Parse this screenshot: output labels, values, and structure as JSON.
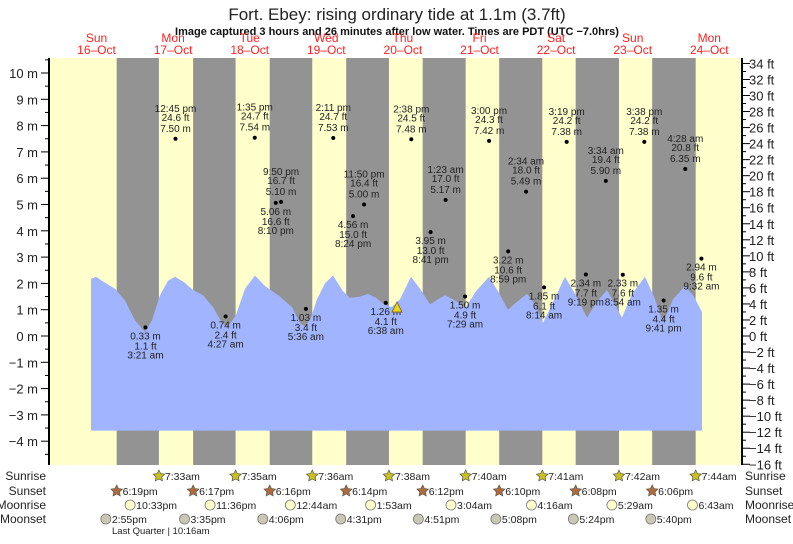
{
  "chart_data": {
    "type": "area",
    "title": "Fort. Ebey: rising  ordinary tide at 1.1m (3.7ft)",
    "subtitle": "Image captured 3 hours and 26 minutes after low water. Times are PDT (UTC −7.0hrs)",
    "days": [
      {
        "dow": "Sun",
        "date": "16–Oct"
      },
      {
        "dow": "Mon",
        "date": "17–Oct"
      },
      {
        "dow": "Tue",
        "date": "18–Oct"
      },
      {
        "dow": "Wed",
        "date": "19–Oct"
      },
      {
        "dow": "Thu",
        "date": "20–Oct"
      },
      {
        "dow": "Fri",
        "date": "21–Oct"
      },
      {
        "dow": "Sat",
        "date": "22–Oct"
      },
      {
        "dow": "Sun",
        "date": "23–Oct"
      },
      {
        "dow": "Mon",
        "date": "24–Oct"
      }
    ],
    "y_left": {
      "unit": "m",
      "range": [
        -4.9,
        10.6
      ],
      "ticks": [
        10,
        9,
        8,
        7,
        6,
        5,
        4,
        3,
        2,
        1,
        0,
        -1,
        -2,
        -3,
        -4
      ],
      "tick_labels": [
        "10 m",
        "9 m",
        "8 m",
        "7 m",
        "6 m",
        "5 m",
        "4 m",
        "3 m",
        "2 m",
        "1 m",
        "0 m",
        "−1 m",
        "−2 m",
        "−3 m",
        "−4 m"
      ]
    },
    "y_right": {
      "unit": "ft",
      "ticks": [
        34,
        32,
        30,
        28,
        26,
        24,
        22,
        20,
        18,
        16,
        14,
        12,
        10,
        8,
        6,
        4,
        2,
        0,
        -2,
        -4,
        -6,
        -8,
        -10,
        -12,
        -14,
        -16
      ],
      "tick_labels": [
        "34 ft",
        "32 ft",
        "30 ft",
        "28 ft",
        "26 ft",
        "24 ft",
        "22 ft",
        "20 ft",
        "18 ft",
        "16 ft",
        "14 ft",
        "12 ft",
        "10 ft",
        "8 ft",
        "6 ft",
        "4 ft",
        "2 ft",
        "0 ft",
        "−2 ft",
        "−4 ft",
        "−6 ft",
        "−8 ft",
        "−10 ft",
        "−12 ft",
        "−14 ft",
        "−16 ft"
      ]
    },
    "current_level_m": 1.1,
    "tide_events": [
      {
        "day": 1,
        "time": "3:21 am",
        "ft": "1.1 ft",
        "m": "0.33 m",
        "h": 3.35,
        "value": 0.33,
        "label": "below"
      },
      {
        "day": 1,
        "time": "12:45 pm",
        "ft": "24.6 ft",
        "m": "7.50 m",
        "h": 12.75,
        "value": 7.5,
        "label": "above"
      },
      {
        "day": 2,
        "time": "4:27 am",
        "ft": "2.4 ft",
        "m": "0.74 m",
        "h": 4.45,
        "value": 0.74,
        "label": "below"
      },
      {
        "day": 2,
        "time": "1:35 pm",
        "ft": "24.7 ft",
        "m": "7.54 m",
        "h": 13.58,
        "value": 7.54,
        "label": "above"
      },
      {
        "day": 2,
        "time": "8:10 pm",
        "ft": "16.6 ft",
        "m": "5.06 m",
        "h": 20.17,
        "value": 5.06,
        "label": "below"
      },
      {
        "day": 2,
        "time": "9:50 pm",
        "ft": "16.7 ft",
        "m": "5.10 m",
        "h": 21.83,
        "value": 5.1,
        "label": "above"
      },
      {
        "day": 3,
        "time": "5:36 am",
        "ft": "3.4 ft",
        "m": "1.03 m",
        "h": 5.6,
        "value": 1.03,
        "label": "below"
      },
      {
        "day": 3,
        "time": "2:11 pm",
        "ft": "24.7 ft",
        "m": "7.53 m",
        "h": 14.18,
        "value": 7.53,
        "label": "above"
      },
      {
        "day": 3,
        "time": "8:24 pm",
        "ft": "15.0 ft",
        "m": "4.56 m",
        "h": 20.4,
        "value": 4.56,
        "label": "below"
      },
      {
        "day": 3,
        "time": "11:50 pm",
        "ft": "16.4 ft",
        "m": "5.00 m",
        "h": 23.83,
        "value": 5.0,
        "label": "above"
      },
      {
        "day": 4,
        "time": "6:38 am",
        "ft": "4.1 ft",
        "m": "1.26 m",
        "h": 6.63,
        "value": 1.26,
        "label": "below"
      },
      {
        "day": 4,
        "time": "2:38 pm",
        "ft": "24.5 ft",
        "m": "7.48 m",
        "h": 14.63,
        "value": 7.48,
        "label": "above"
      },
      {
        "day": 4,
        "time": "8:41 pm",
        "ft": "13.0 ft",
        "m": "3.95 m",
        "h": 20.68,
        "value": 3.95,
        "label": "below"
      },
      {
        "day": 5,
        "time": "1:23 am",
        "ft": "17.0 ft",
        "m": "5.17 m",
        "h": 1.38,
        "value": 5.17,
        "label": "above"
      },
      {
        "day": 5,
        "time": "7:29 am",
        "ft": "4.9 ft",
        "m": "1.50 m",
        "h": 7.48,
        "value": 1.5,
        "label": "below"
      },
      {
        "day": 5,
        "time": "3:00 pm",
        "ft": "24.3 ft",
        "m": "7.42 m",
        "h": 15.0,
        "value": 7.42,
        "label": "above"
      },
      {
        "day": 5,
        "time": "8:59 pm",
        "ft": "10.6 ft",
        "m": "3.22 m",
        "h": 20.98,
        "value": 3.22,
        "label": "below"
      },
      {
        "day": 6,
        "time": "2:34 am",
        "ft": "18.0 ft",
        "m": "5.49 m",
        "h": 2.57,
        "value": 5.49,
        "label": "above"
      },
      {
        "day": 6,
        "time": "8:14 am",
        "ft": "6.1 ft",
        "m": "1.85 m",
        "h": 8.23,
        "value": 1.85,
        "label": "below"
      },
      {
        "day": 6,
        "time": "3:19 pm",
        "ft": "24.2 ft",
        "m": "7.38 m",
        "h": 15.32,
        "value": 7.38,
        "label": "above"
      },
      {
        "day": 6,
        "time": "9:19 pm",
        "ft": "7.7 ft",
        "m": "2.34 m",
        "h": 21.32,
        "value": 2.34,
        "label": "below"
      },
      {
        "day": 7,
        "time": "3:34 am",
        "ft": "19.4 ft",
        "m": "5.90 m",
        "h": 3.57,
        "value": 5.9,
        "label": "above"
      },
      {
        "day": 7,
        "time": "8:54 am",
        "ft": "7.6 ft",
        "m": "2.33 m",
        "h": 8.9,
        "value": 2.33,
        "label": "below"
      },
      {
        "day": 7,
        "time": "3:38 pm",
        "ft": "24.2 ft",
        "m": "7.38 m",
        "h": 15.63,
        "value": 7.38,
        "label": "above"
      },
      {
        "day": 7,
        "time": "9:41 pm",
        "ft": "4.4 ft",
        "m": "1.35 m",
        "h": 21.68,
        "value": 1.35,
        "label": "below"
      },
      {
        "day": 8,
        "time": "4:28 am",
        "ft": "20.8 ft",
        "m": "6.35 m",
        "h": 4.47,
        "value": 6.35,
        "label": "above"
      },
      {
        "day": 8,
        "time": "9:32 am",
        "ft": "9.6 ft",
        "m": "2.94 m",
        "h": 9.53,
        "value": 2.94,
        "label": "below"
      }
    ],
    "rows": [
      {
        "label": "Sunrise",
        "kind": "sunrise",
        "color": "#c8c020",
        "events": [
          {
            "day": 1,
            "h": 7.55,
            "text": "7:33am"
          },
          {
            "day": 2,
            "h": 7.58,
            "text": "7:35am"
          },
          {
            "day": 3,
            "h": 7.6,
            "text": "7:36am"
          },
          {
            "day": 4,
            "h": 7.63,
            "text": "7:38am"
          },
          {
            "day": 5,
            "h": 7.67,
            "text": "7:40am"
          },
          {
            "day": 6,
            "h": 7.68,
            "text": "7:41am"
          },
          {
            "day": 7,
            "h": 7.7,
            "text": "7:42am"
          },
          {
            "day": 8,
            "h": 7.73,
            "text": "7:44am"
          }
        ]
      },
      {
        "label": "Sunset",
        "kind": "sunset",
        "color": "#b06a40",
        "events": [
          {
            "day": 0,
            "h": 18.32,
            "text": "6:19pm"
          },
          {
            "day": 1,
            "h": 18.28,
            "text": "6:17pm"
          },
          {
            "day": 2,
            "h": 18.27,
            "text": "6:16pm"
          },
          {
            "day": 3,
            "h": 18.23,
            "text": "6:14pm"
          },
          {
            "day": 4,
            "h": 18.2,
            "text": "6:12pm"
          },
          {
            "day": 5,
            "h": 18.17,
            "text": "6:10pm"
          },
          {
            "day": 6,
            "h": 18.13,
            "text": "6:08pm"
          },
          {
            "day": 7,
            "h": 18.1,
            "text": "6:06pm"
          }
        ]
      },
      {
        "label": "Moonrise",
        "kind": "moonrise",
        "color": "#ffffcc",
        "events": [
          {
            "day": 0,
            "h": 22.55,
            "text": "10:33pm"
          },
          {
            "day": 1,
            "h": 23.6,
            "text": "11:36pm"
          },
          {
            "day": 3,
            "h": 0.73,
            "text": "12:44am"
          },
          {
            "day": 4,
            "h": 1.88,
            "text": "1:53am"
          },
          {
            "day": 5,
            "h": 3.07,
            "text": "3:04am"
          },
          {
            "day": 6,
            "h": 4.27,
            "text": "4:16am"
          },
          {
            "day": 7,
            "h": 5.48,
            "text": "5:29am"
          },
          {
            "day": 8,
            "h": 6.72,
            "text": "6:43am"
          }
        ]
      },
      {
        "label": "Moonset",
        "kind": "moonset",
        "color": "#c8c8b4",
        "events": [
          {
            "day": 0,
            "h": 14.92,
            "text": "2:55pm"
          },
          {
            "day": 1,
            "h": 15.58,
            "text": "3:35pm"
          },
          {
            "day": 2,
            "h": 16.1,
            "text": "4:06pm"
          },
          {
            "day": 3,
            "h": 16.52,
            "text": "4:31pm"
          },
          {
            "day": 4,
            "h": 16.85,
            "text": "4:51pm"
          },
          {
            "day": 5,
            "h": 17.13,
            "text": "5:08pm"
          },
          {
            "day": 6,
            "h": 17.4,
            "text": "5:24pm"
          },
          {
            "day": 7,
            "h": 17.67,
            "text": "5:40pm"
          }
        ]
      }
    ],
    "moon_phase": "Last Quarter | 10:16am",
    "colors": {
      "day": "#ffffcc",
      "night": "#939393",
      "water": "#a0b4ff",
      "day_label": "#ff2020",
      "marker": "#e8d820"
    }
  }
}
